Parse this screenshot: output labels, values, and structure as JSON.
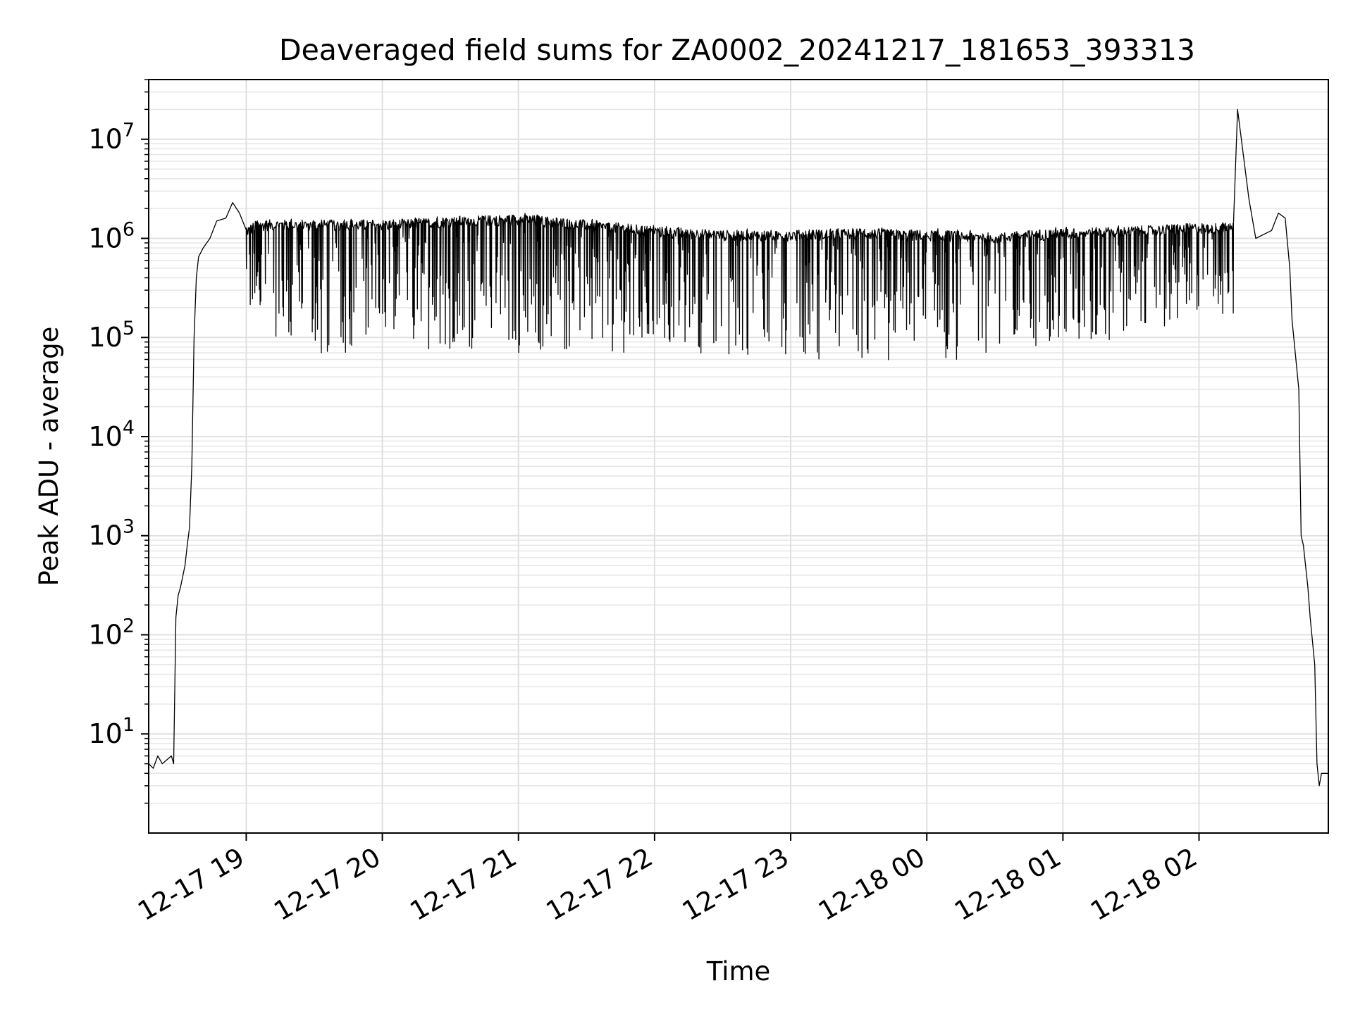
{
  "chart_data": {
    "type": "line",
    "title": "Deaveraged field sums for ZA0002_20241217_181653_393313",
    "xlabel": "Time",
    "ylabel": "Peak ADU - average",
    "yscale": "log",
    "ylim": [
      1,
      40000000
    ],
    "xlim": [
      "2024-12-17 18:17",
      "2024-12-18 02:57"
    ],
    "grid": true,
    "line_color": "#000000",
    "xticks": [
      {
        "t": "2024-12-17 19:00",
        "label": "12-17 19"
      },
      {
        "t": "2024-12-17 20:00",
        "label": "12-17 20"
      },
      {
        "t": "2024-12-17 21:00",
        "label": "12-17 21"
      },
      {
        "t": "2024-12-17 22:00",
        "label": "12-17 22"
      },
      {
        "t": "2024-12-17 23:00",
        "label": "12-17 23"
      },
      {
        "t": "2024-12-18 00:00",
        "label": "12-18 00"
      },
      {
        "t": "2024-12-18 01:00",
        "label": "12-18 01"
      },
      {
        "t": "2024-12-18 02:00",
        "label": "12-18 02"
      }
    ],
    "yticks": [
      {
        "v": 10,
        "base": "10",
        "exp": "1"
      },
      {
        "v": 100,
        "base": "10",
        "exp": "2"
      },
      {
        "v": 1000,
        "base": "10",
        "exp": "3"
      },
      {
        "v": 10000,
        "base": "10",
        "exp": "4"
      },
      {
        "v": 100000,
        "base": "10",
        "exp": "5"
      },
      {
        "v": 1000000,
        "base": "10",
        "exp": "6"
      },
      {
        "v": 10000000,
        "base": "10",
        "exp": "7"
      }
    ],
    "series": [
      {
        "color": "#000000",
        "points": [
          [
            "2024-12-17 18:17",
            5
          ],
          [
            "2024-12-17 18:19",
            4.5
          ],
          [
            "2024-12-17 18:21",
            6
          ],
          [
            "2024-12-17 18:23",
            5
          ],
          [
            "2024-12-17 18:27",
            6
          ],
          [
            "2024-12-17 18:28",
            5
          ],
          [
            "2024-12-17 18:29",
            150
          ],
          [
            "2024-12-17 18:30",
            250
          ],
          [
            "2024-12-17 18:31",
            300
          ],
          [
            "2024-12-17 18:33",
            500
          ],
          [
            "2024-12-17 18:34",
            800
          ],
          [
            "2024-12-17 18:35",
            1200
          ],
          [
            "2024-12-17 18:36",
            5000
          ],
          [
            "2024-12-17 18:37",
            100000
          ],
          [
            "2024-12-17 18:38",
            400000
          ],
          [
            "2024-12-17 18:39",
            650000
          ],
          [
            "2024-12-17 18:41",
            800000
          ],
          [
            "2024-12-17 18:44",
            1000000
          ],
          [
            "2024-12-17 18:47",
            1500000
          ],
          [
            "2024-12-17 18:51",
            1600000
          ],
          [
            "2024-12-17 18:54",
            2300000
          ],
          [
            "2024-12-17 18:57",
            1800000
          ],
          [
            "2024-12-17 19:00",
            1200000
          ],
          [
            "2024-12-17 19:05",
            1400000
          ],
          [
            "2024-12-17 19:30",
            1400000
          ],
          [
            "2024-12-17 20:00",
            1400000
          ],
          [
            "2024-12-17 20:30",
            1500000
          ],
          [
            "2024-12-17 21:00",
            1600000
          ],
          [
            "2024-12-17 21:30",
            1400000
          ],
          [
            "2024-12-17 22:00",
            1200000
          ],
          [
            "2024-12-17 22:30",
            1100000
          ],
          [
            "2024-12-17 23:00",
            1100000
          ],
          [
            "2024-12-17 23:30",
            1150000
          ],
          [
            "2024-12-18 00:00",
            1100000
          ],
          [
            "2024-12-18 00:30",
            1050000
          ],
          [
            "2024-12-18 01:00",
            1150000
          ],
          [
            "2024-12-18 01:30",
            1200000
          ],
          [
            "2024-12-18 02:00",
            1300000
          ],
          [
            "2024-12-18 02:15",
            1300000
          ],
          [
            "2024-12-18 02:17",
            20000000
          ],
          [
            "2024-12-18 02:22",
            2500000
          ],
          [
            "2024-12-18 02:25",
            1000000
          ],
          [
            "2024-12-18 02:32",
            1200000
          ],
          [
            "2024-12-18 02:35",
            1800000
          ],
          [
            "2024-12-18 02:38",
            1600000
          ],
          [
            "2024-12-18 02:40",
            500000
          ],
          [
            "2024-12-18 02:41",
            150000
          ],
          [
            "2024-12-18 02:44",
            30000
          ],
          [
            "2024-12-18 02:45",
            1000
          ],
          [
            "2024-12-18 02:46",
            800
          ],
          [
            "2024-12-18 02:48",
            300
          ],
          [
            "2024-12-18 02:49",
            150
          ],
          [
            "2024-12-18 02:51",
            50
          ],
          [
            "2024-12-18 02:52",
            5
          ],
          [
            "2024-12-18 02:53",
            3
          ],
          [
            "2024-12-18 02:54",
            4
          ],
          [
            "2024-12-18 02:57",
            4
          ]
        ],
        "dip_floor_by_hour": [
          [
            "2024-12-17 19:00",
            150000
          ],
          [
            "2024-12-17 19:30",
            60000
          ],
          [
            "2024-12-17 20:00",
            80000
          ],
          [
            "2024-12-17 21:00",
            70000
          ],
          [
            "2024-12-17 22:00",
            70000
          ],
          [
            "2024-12-17 23:00",
            60000
          ],
          [
            "2024-12-17 23:45",
            45000
          ],
          [
            "2024-12-18 00:30",
            70000
          ],
          [
            "2024-12-18 01:30",
            100000
          ],
          [
            "2024-12-18 02:10",
            150000
          ]
        ]
      }
    ]
  }
}
